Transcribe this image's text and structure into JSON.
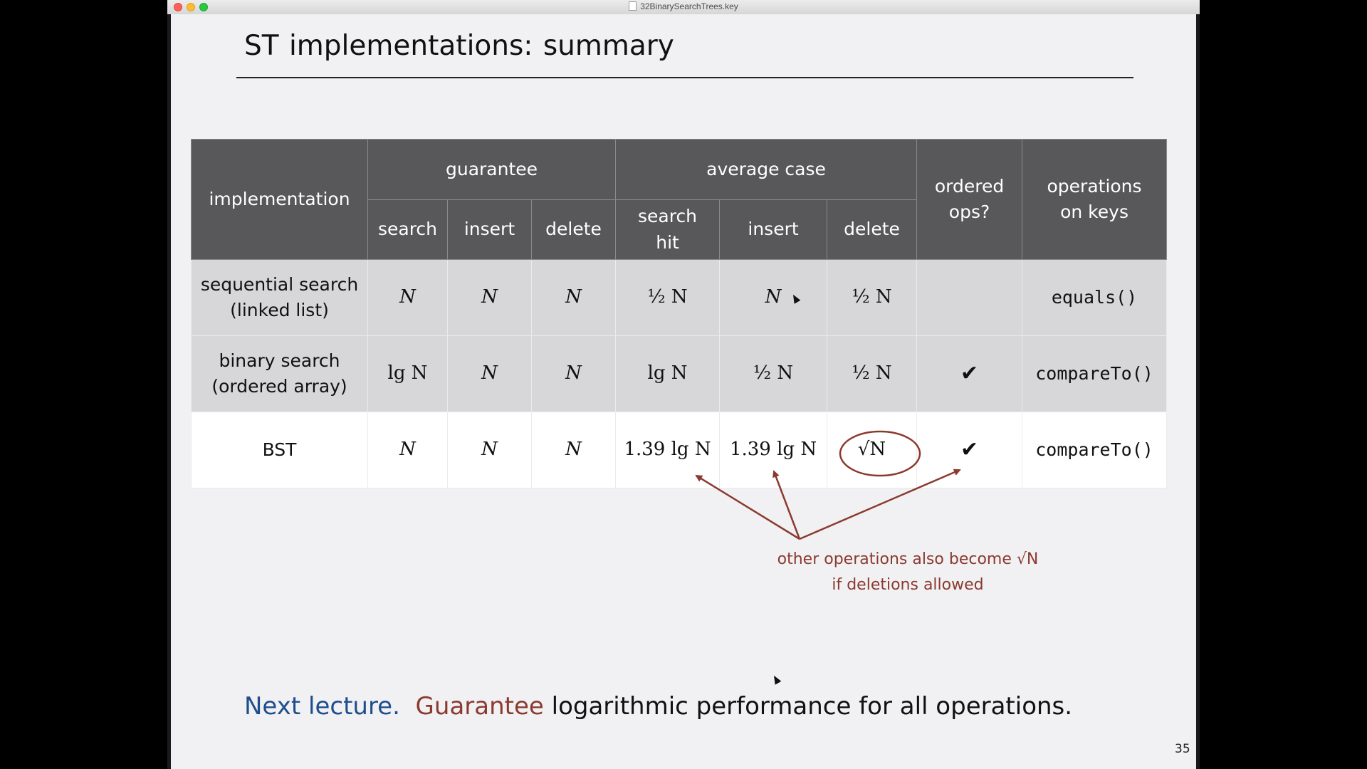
{
  "window": {
    "title": "32BinarySearchTrees.key"
  },
  "slide": {
    "title": "ST implementations:  summary",
    "table": {
      "headers": {
        "implementation": "implementation",
        "guarantee": "guarantee",
        "average_case": "average case",
        "ordered_ops": "ordered ops?",
        "operations_on_keys": "operations on keys",
        "sub": [
          "search",
          "insert",
          "delete",
          "search hit",
          "insert",
          "delete"
        ]
      },
      "rows": [
        {
          "implementation": "sequential search (linked list)",
          "guarantee_search": "N",
          "guarantee_insert": "N",
          "guarantee_delete": "N",
          "avg_search_hit": "½ N",
          "avg_insert": "N",
          "avg_delete": "½ N",
          "ordered_ops": "",
          "operations_on_keys": "equals()"
        },
        {
          "implementation": "binary search (ordered array)",
          "guarantee_search": "lg N",
          "guarantee_insert": "N",
          "guarantee_delete": "N",
          "avg_search_hit": "lg N",
          "avg_insert": "½ N",
          "avg_delete": "½ N",
          "ordered_ops": "✔",
          "operations_on_keys": "compareTo()"
        },
        {
          "implementation": "BST",
          "guarantee_search": "N",
          "guarantee_insert": "N",
          "guarantee_delete": "N",
          "avg_search_hit": "1.39 lg N",
          "avg_insert": "1.39 lg N",
          "avg_delete": "√N",
          "ordered_ops": "✔",
          "operations_on_keys": "compareTo()"
        }
      ]
    },
    "annotation": {
      "line1": "other operations also become √N",
      "line2": "if deletions allowed",
      "color": "#8b3a2f"
    },
    "footer": {
      "next_lecture": "Next lecture.",
      "guarantee": "Guarantee",
      "rest": "logarithmic performance for all operations."
    },
    "page_number": "35"
  },
  "colors": {
    "header_bg": "#58585a",
    "row_gray": "#d7d7d9",
    "accent_red": "#8b3a2f",
    "accent_blue": "#1f4e8c"
  }
}
